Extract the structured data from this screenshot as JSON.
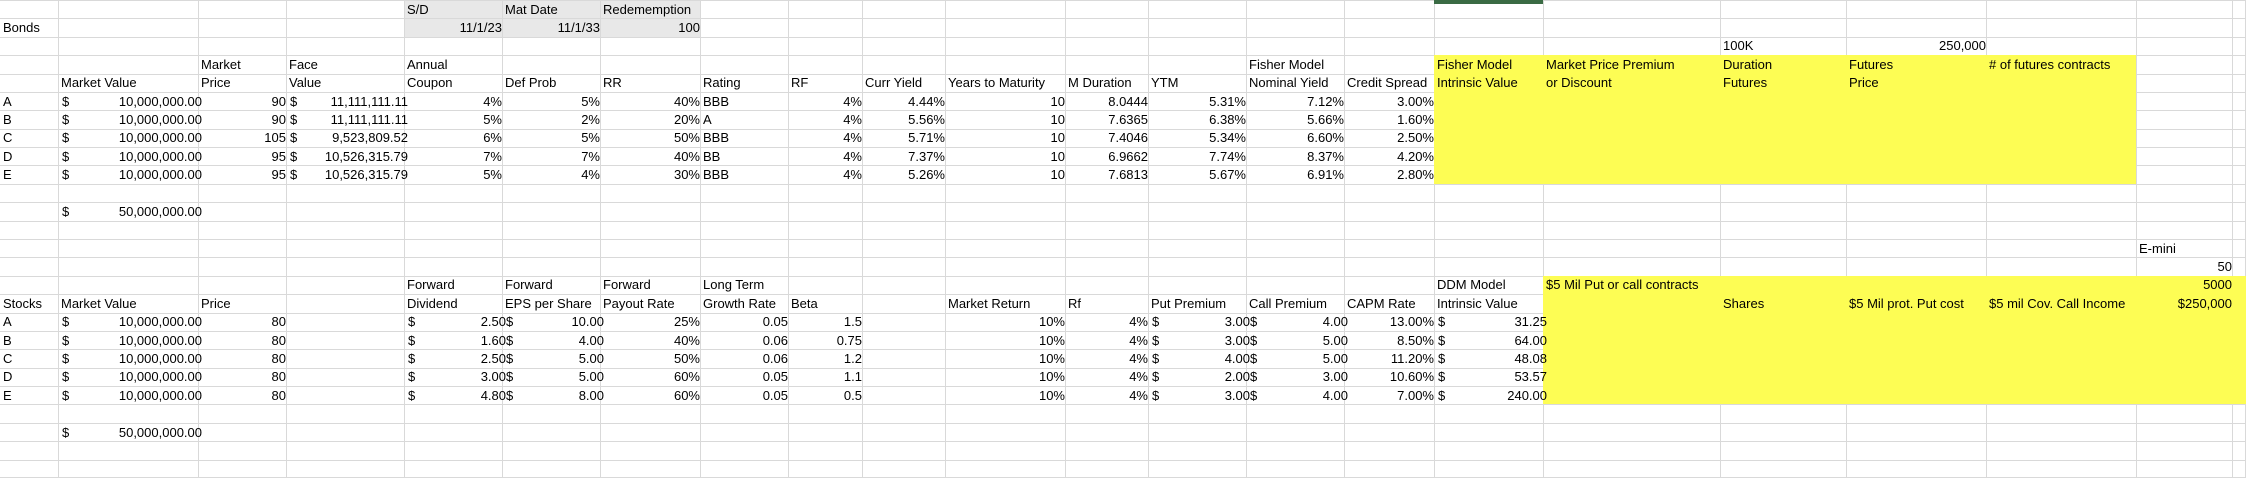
{
  "colors": {
    "highlight_yellow": "#fdfd54",
    "header_gray": "#e8e8e8",
    "gridline": "#d9d9d9",
    "selection_green": "#3a6b44",
    "text": "#000000",
    "background": "#ffffff"
  },
  "misc": {
    "currency_symbol": "$"
  },
  "deal_terms": {
    "sd_label": "S/D",
    "sd_value": "11/1/23",
    "mat_date_label": "Mat Date",
    "mat_date_value": "11/1/33",
    "redemption_label": "Redememption",
    "redemption_value": "100"
  },
  "futures_contract": {
    "size_label": "100K",
    "notional": "250,000",
    "emini_label": "E-mini",
    "emini_multiplier": "50",
    "emini_contracts": "5000"
  },
  "bonds": {
    "section_label": "Bonds",
    "headers": {
      "market_value": "Market Value",
      "price_l1": "Market",
      "price_l2": "Price",
      "face_l1": "Face",
      "face_l2": "Value",
      "coupon_l1": "Annual",
      "coupon_l2": "Coupon",
      "def_prob": "Def Prob",
      "rr": "RR",
      "rating": "Rating",
      "rf": "RF",
      "curr_yield": "Curr Yield",
      "years": "Years to Maturity",
      "m_duration": "M Duration",
      "ytm": "YTM",
      "fisher_l1": "Fisher Model",
      "fisher_l2": "Nominal Yield",
      "credit_spread": "Credit Spread",
      "intrinsic_l1": "Fisher Model",
      "intrinsic_l2": "Intrinsic Value",
      "premium_l1": "Market Price Premium",
      "premium_l2": "or Discount",
      "dur_fut_l1": "Duration",
      "dur_fut_l2": "Futures",
      "fut_price_l1": "Futures",
      "fut_price_l2": "Price",
      "num_contracts": "# of futures contracts"
    },
    "rows": [
      {
        "id": "A",
        "market_value": "10,000,000.00",
        "price": "90",
        "face_value": "11,111,111.11",
        "coupon": "4%",
        "def_prob": "5%",
        "rr": "40%",
        "rating": "BBB",
        "rf": "4%",
        "curr_yield": "4.44%",
        "years": "10",
        "m_duration": "8.0444",
        "ytm": "5.31%",
        "nominal_yield": "7.12%",
        "credit_spread": "3.00%"
      },
      {
        "id": "B",
        "market_value": "10,000,000.00",
        "price": "90",
        "face_value": "11,111,111.11",
        "coupon": "5%",
        "def_prob": "2%",
        "rr": "20%",
        "rating": "A",
        "rf": "4%",
        "curr_yield": "5.56%",
        "years": "10",
        "m_duration": "7.6365",
        "ytm": "6.38%",
        "nominal_yield": "5.66%",
        "credit_spread": "1.60%"
      },
      {
        "id": "C",
        "market_value": "10,000,000.00",
        "price": "105",
        "face_value": "9,523,809.52",
        "coupon": "6%",
        "def_prob": "5%",
        "rr": "50%",
        "rating": "BBB",
        "rf": "4%",
        "curr_yield": "5.71%",
        "years": "10",
        "m_duration": "7.4046",
        "ytm": "5.34%",
        "nominal_yield": "6.60%",
        "credit_spread": "2.50%"
      },
      {
        "id": "D",
        "market_value": "10,000,000.00",
        "price": "95",
        "face_value": "10,526,315.79",
        "coupon": "7%",
        "def_prob": "7%",
        "rr": "40%",
        "rating": "BB",
        "rf": "4%",
        "curr_yield": "7.37%",
        "years": "10",
        "m_duration": "6.9662",
        "ytm": "7.74%",
        "nominal_yield": "8.37%",
        "credit_spread": "4.20%"
      },
      {
        "id": "E",
        "market_value": "10,000,000.00",
        "price": "95",
        "face_value": "10,526,315.79",
        "coupon": "5%",
        "def_prob": "4%",
        "rr": "30%",
        "rating": "BBB",
        "rf": "4%",
        "curr_yield": "5.26%",
        "years": "10",
        "m_duration": "7.6813",
        "ytm": "5.67%",
        "nominal_yield": "6.91%",
        "credit_spread": "2.80%"
      }
    ],
    "total_market_value": "50,000,000.00"
  },
  "stocks": {
    "section_label": "Stocks",
    "headers": {
      "market_value": "Market Value",
      "price": "Price",
      "dividend_l1": "Forward",
      "dividend_l2": "Dividend",
      "eps_l1": "Forward",
      "eps_l2": "EPS per Share",
      "payout_l1": "Forward",
      "payout_l2": "Payout Rate",
      "growth_l1": "Long Term",
      "growth_l2": "Growth Rate",
      "beta": "Beta",
      "market_return": "Market Return",
      "rf": "Rf",
      "put_premium": "Put Premium",
      "call_premium": "Call Premium",
      "capm": "CAPM Rate",
      "ddm_l1": "DDM Model",
      "ddm_l2": "Intrinsic Value"
    },
    "options": {
      "put_call_label": "$5 Mil Put or call contracts",
      "contracts": "5000",
      "shares_label": "Shares",
      "put_cost_label": "$5 Mil prot. Put cost",
      "call_income_label": "$5 mil Cov. Call Income",
      "income_value": "$250,000"
    },
    "rows": [
      {
        "id": "A",
        "market_value": "10,000,000.00",
        "price": "80",
        "dividend": "2.50",
        "eps": "10.00",
        "payout": "25%",
        "growth": "0.05",
        "beta": "1.5",
        "market_return": "10%",
        "rf": "4%",
        "put_premium": "3.00",
        "call_premium": "4.00",
        "capm": "13.00%",
        "intrinsic": "31.25"
      },
      {
        "id": "B",
        "market_value": "10,000,000.00",
        "price": "80",
        "dividend": "1.60",
        "eps": "4.00",
        "payout": "40%",
        "growth": "0.06",
        "beta": "0.75",
        "market_return": "10%",
        "rf": "4%",
        "put_premium": "3.00",
        "call_premium": "5.00",
        "capm": "8.50%",
        "intrinsic": "64.00"
      },
      {
        "id": "C",
        "market_value": "10,000,000.00",
        "price": "80",
        "dividend": "2.50",
        "eps": "5.00",
        "payout": "50%",
        "growth": "0.06",
        "beta": "1.2",
        "market_return": "10%",
        "rf": "4%",
        "put_premium": "4.00",
        "call_premium": "5.00",
        "capm": "11.20%",
        "intrinsic": "48.08"
      },
      {
        "id": "D",
        "market_value": "10,000,000.00",
        "price": "80",
        "dividend": "3.00",
        "eps": "5.00",
        "payout": "60%",
        "growth": "0.05",
        "beta": "1.1",
        "market_return": "10%",
        "rf": "4%",
        "put_premium": "2.00",
        "call_premium": "3.00",
        "capm": "10.60%",
        "intrinsic": "53.57"
      },
      {
        "id": "E",
        "market_value": "10,000,000.00",
        "price": "80",
        "dividend": "4.80",
        "eps": "8.00",
        "payout": "60%",
        "growth": "0.05",
        "beta": "0.5",
        "market_return": "10%",
        "rf": "4%",
        "put_premium": "3.00",
        "call_premium": "4.00",
        "capm": "7.00%",
        "intrinsic": "240.00"
      }
    ],
    "total_market_value": "50,000,000.00"
  }
}
